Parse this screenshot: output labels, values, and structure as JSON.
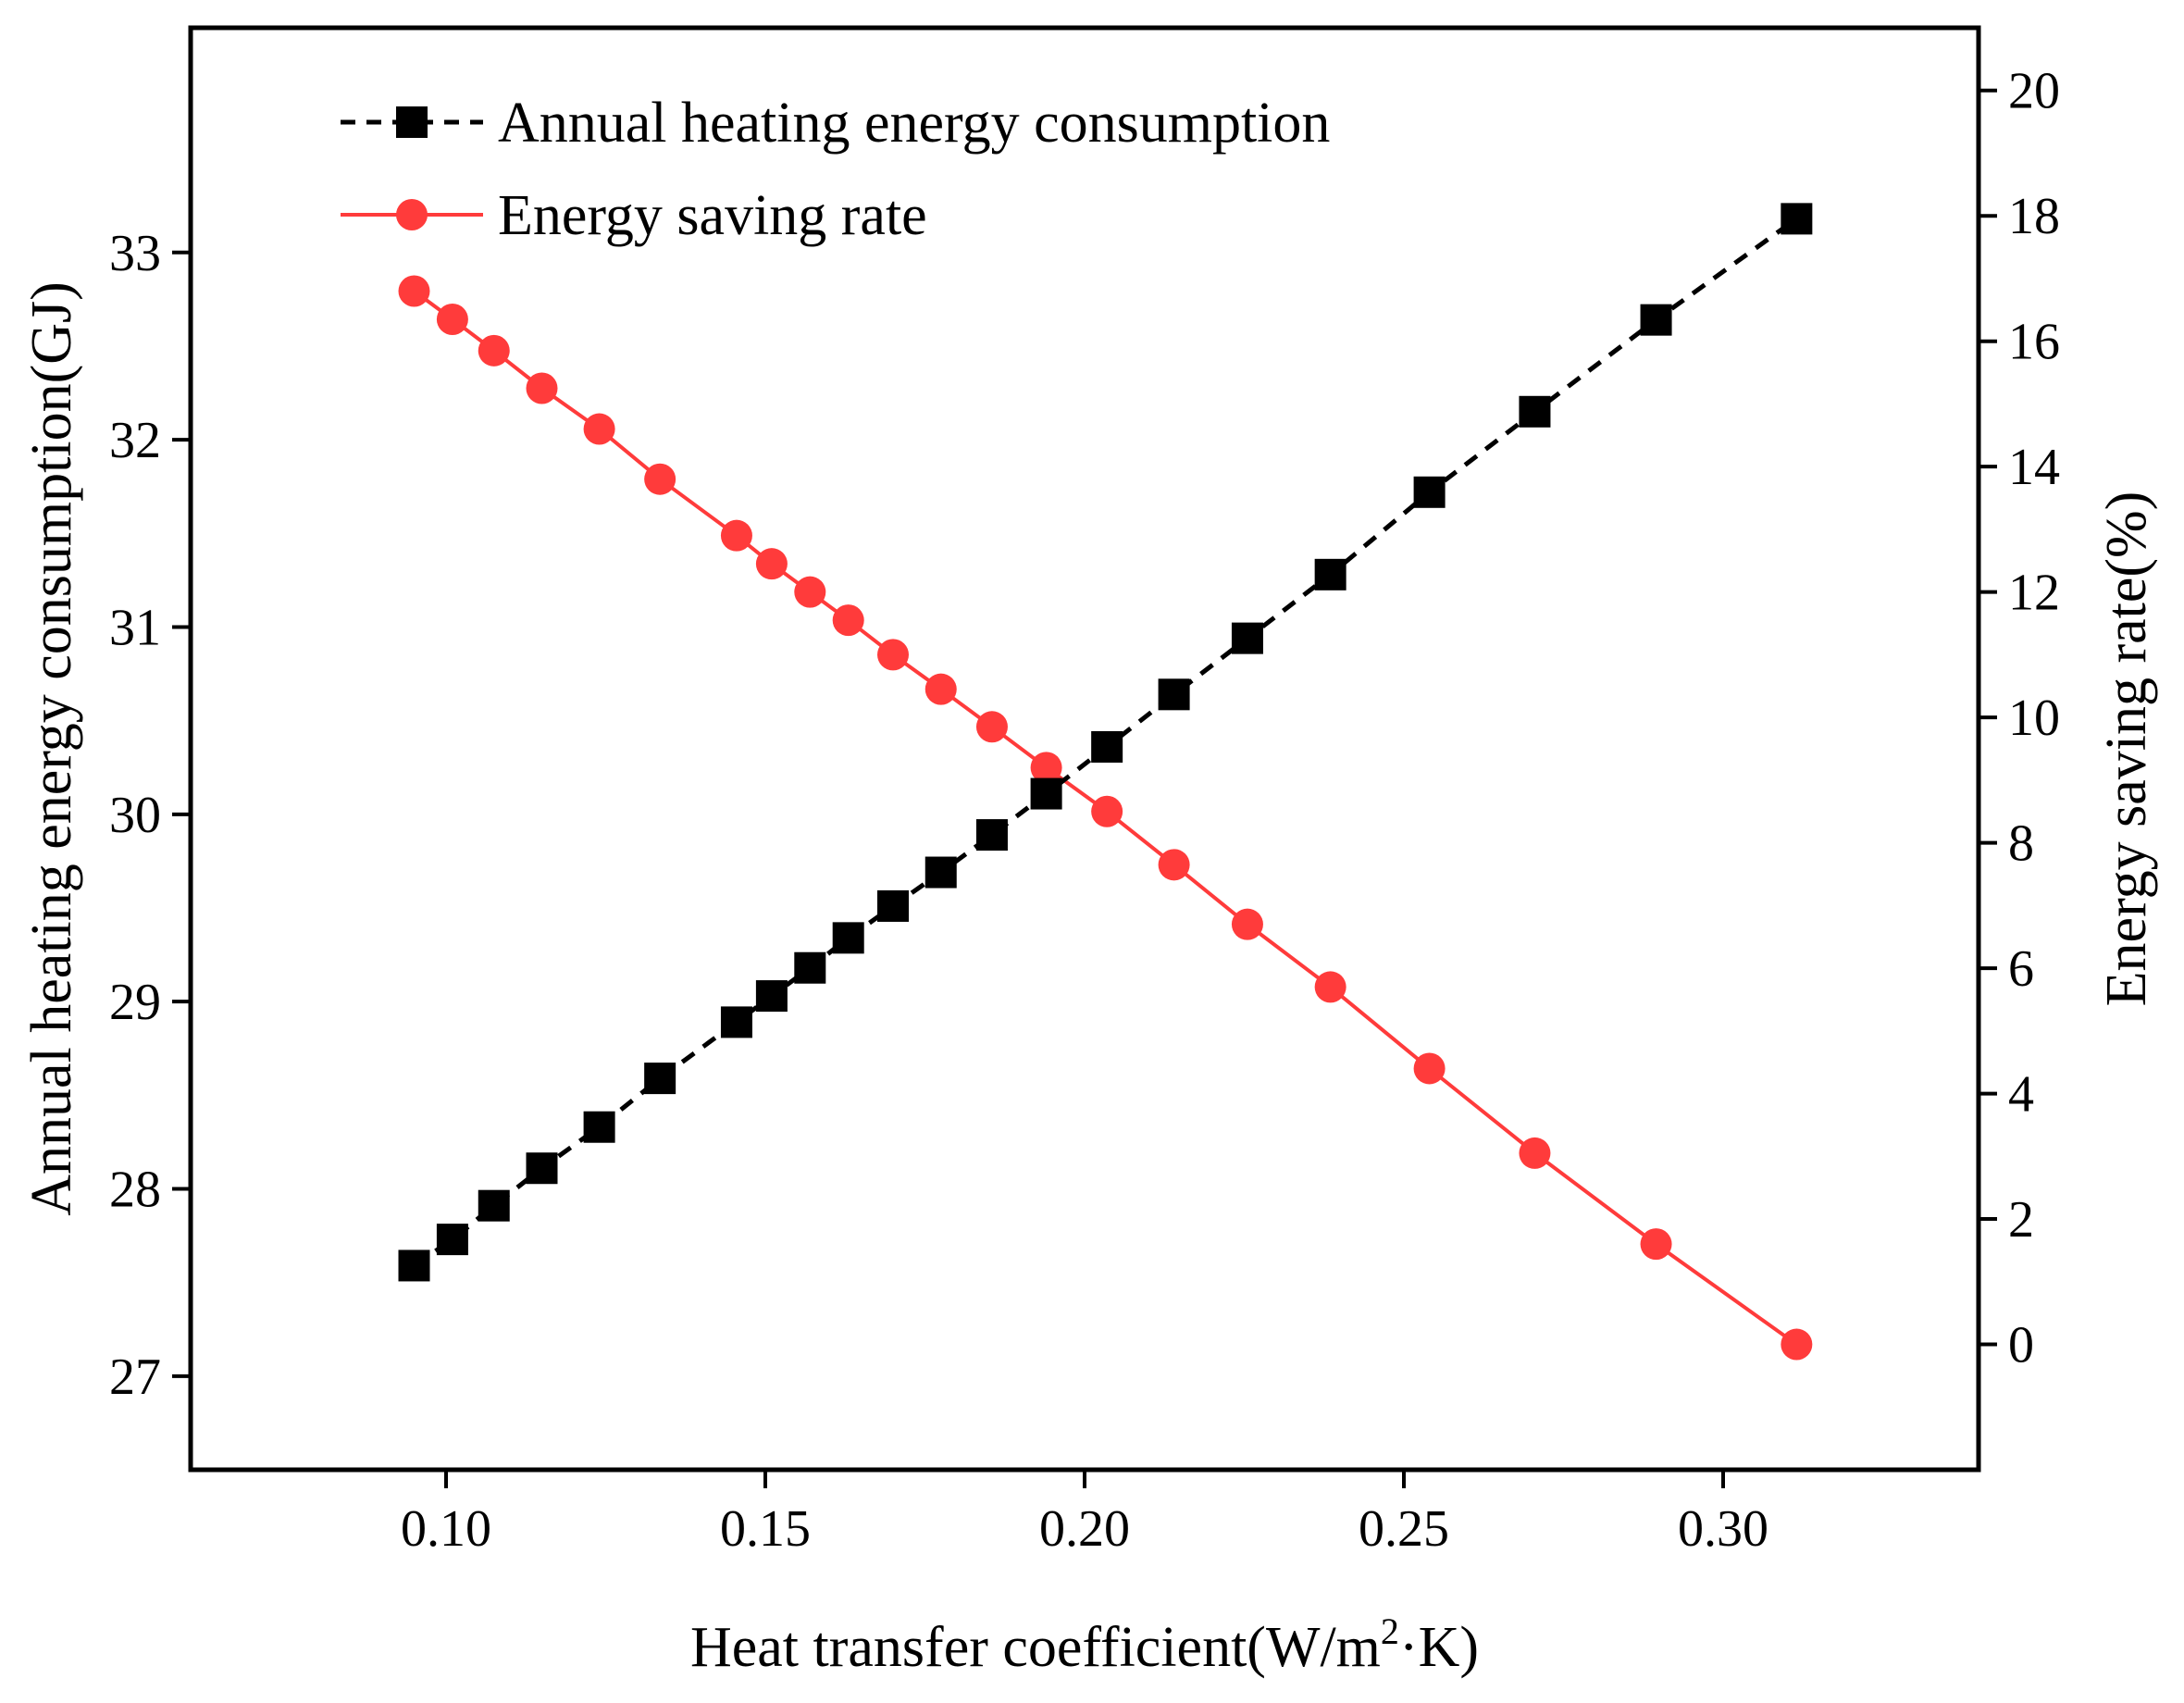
{
  "chart_data": {
    "type": "line",
    "xlabel": "Heat transfer coefficient(W/m",
    "xlabel_sup": "2",
    "xlabel_tail": "·K)",
    "ylabel_left": "Annual heating energy consumption(GJ)",
    "ylabel_right": "Energy saving rate(%)",
    "xlim": [
      0.06,
      0.34
    ],
    "ylim_left": [
      26.5,
      34.2
    ],
    "ylim_right": [
      -2,
      21
    ],
    "x_ticks": [
      0.1,
      0.15,
      0.2,
      0.25,
      0.3
    ],
    "x_tick_labels": [
      "0.10",
      "0.15",
      "0.20",
      "0.25",
      "0.30"
    ],
    "y_left_ticks": [
      27,
      28,
      29,
      30,
      31,
      32,
      33
    ],
    "y_left_tick_labels": [
      "27",
      "28",
      "29",
      "30",
      "31",
      "32",
      "33"
    ],
    "y_right_ticks": [
      0,
      2,
      4,
      6,
      8,
      10,
      12,
      14,
      16,
      18,
      20
    ],
    "y_right_tick_labels": [
      "0",
      "2",
      "4",
      "6",
      "8",
      "10",
      "12",
      "14",
      "16",
      "18",
      "20"
    ],
    "legend_position": "top-left",
    "series": [
      {
        "name": "Annual heating energy consumption",
        "axis": "left",
        "marker": "square",
        "line_style": "dashed",
        "color": "#000000",
        "x": [
          0.095,
          0.101,
          0.1075,
          0.115,
          0.124,
          0.1335,
          0.1455,
          0.151,
          0.157,
          0.163,
          0.17,
          0.1775,
          0.1855,
          0.194,
          0.2035,
          0.214,
          0.2255,
          0.2385,
          0.254,
          0.2705,
          0.2895,
          0.3115
        ],
        "values": [
          27.59,
          27.73,
          27.91,
          28.11,
          28.33,
          28.59,
          28.89,
          29.03,
          29.18,
          29.34,
          29.51,
          29.69,
          29.89,
          30.11,
          30.36,
          30.64,
          30.94,
          31.28,
          31.72,
          32.15,
          32.64,
          33.18
        ]
      },
      {
        "name": "Energy saving rate",
        "axis": "right",
        "marker": "circle",
        "line_style": "solid",
        "color": "#ff3b3b",
        "x": [
          0.095,
          0.101,
          0.1075,
          0.115,
          0.124,
          0.1335,
          0.1455,
          0.151,
          0.157,
          0.163,
          0.17,
          0.1775,
          0.1855,
          0.194,
          0.2035,
          0.214,
          0.2255,
          0.2385,
          0.254,
          0.2705,
          0.2895,
          0.3115
        ],
        "values": [
          16.8,
          16.35,
          15.85,
          15.25,
          14.6,
          13.8,
          12.9,
          12.45,
          12.0,
          11.55,
          11.0,
          10.45,
          9.85,
          9.2,
          8.5,
          7.65,
          6.7,
          5.7,
          4.4,
          3.05,
          1.6,
          0.0
        ]
      }
    ]
  }
}
